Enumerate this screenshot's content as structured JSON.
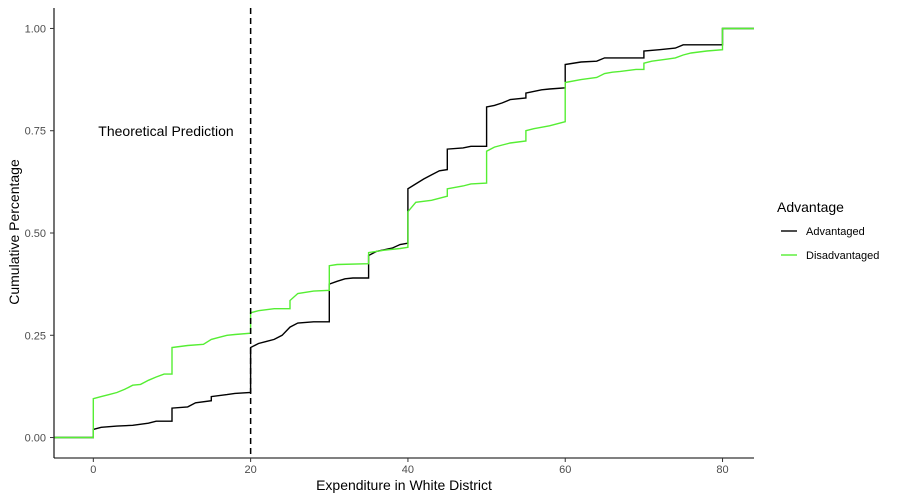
{
  "chart_data": {
    "type": "line",
    "step": true,
    "xlabel": "Expenditure in White District",
    "ylabel": "Cumulative Percentage",
    "xlim": [
      -5,
      84
    ],
    "ylim": [
      -0.05,
      1.05
    ],
    "x_ticks": [
      0,
      20,
      40,
      60,
      80
    ],
    "y_ticks": [
      0.0,
      0.25,
      0.5,
      0.75,
      1.0
    ],
    "x_tick_labels": [
      "0",
      "20",
      "40",
      "60",
      "80"
    ],
    "y_tick_labels": [
      "0.00",
      "0.25",
      "0.50",
      "0.75",
      "1.00"
    ],
    "grid": false,
    "annotations": [
      {
        "text": "Theoretical Prediction",
        "x": 20,
        "style": "dashed-vertical-line"
      }
    ],
    "legend": {
      "title": "Advantage",
      "placement": "right"
    },
    "series": [
      {
        "name": "Advantaged",
        "color": "#000000",
        "points": [
          [
            -5,
            0.0
          ],
          [
            0,
            0.0
          ],
          [
            0,
            0.02
          ],
          [
            1,
            0.025
          ],
          [
            3,
            0.028
          ],
          [
            5,
            0.03
          ],
          [
            7,
            0.035
          ],
          [
            8,
            0.04
          ],
          [
            10,
            0.04
          ],
          [
            10,
            0.072
          ],
          [
            12,
            0.075
          ],
          [
            13,
            0.085
          ],
          [
            15,
            0.09
          ],
          [
            15,
            0.1
          ],
          [
            17,
            0.105
          ],
          [
            18,
            0.108
          ],
          [
            20,
            0.11
          ],
          [
            20,
            0.22
          ],
          [
            21,
            0.23
          ],
          [
            22,
            0.235
          ],
          [
            23,
            0.24
          ],
          [
            24,
            0.25
          ],
          [
            25,
            0.27
          ],
          [
            26,
            0.28
          ],
          [
            28,
            0.283
          ],
          [
            30,
            0.283
          ],
          [
            30,
            0.375
          ],
          [
            31,
            0.382
          ],
          [
            32,
            0.388
          ],
          [
            33,
            0.39
          ],
          [
            35,
            0.39
          ],
          [
            35,
            0.445
          ],
          [
            36,
            0.455
          ],
          [
            38,
            0.463
          ],
          [
            39,
            0.472
          ],
          [
            40,
            0.475
          ],
          [
            40,
            0.608
          ],
          [
            41,
            0.62
          ],
          [
            42,
            0.632
          ],
          [
            43,
            0.642
          ],
          [
            44,
            0.652
          ],
          [
            45,
            0.655
          ],
          [
            45,
            0.705
          ],
          [
            47,
            0.708
          ],
          [
            48,
            0.712
          ],
          [
            50,
            0.712
          ],
          [
            50,
            0.808
          ],
          [
            51,
            0.812
          ],
          [
            52,
            0.818
          ],
          [
            53,
            0.826
          ],
          [
            55,
            0.83
          ],
          [
            55,
            0.842
          ],
          [
            57,
            0.85
          ],
          [
            58,
            0.852
          ],
          [
            60,
            0.855
          ],
          [
            60,
            0.912
          ],
          [
            62,
            0.918
          ],
          [
            64,
            0.92
          ],
          [
            65,
            0.928
          ],
          [
            70,
            0.928
          ],
          [
            70,
            0.945
          ],
          [
            72,
            0.948
          ],
          [
            74,
            0.952
          ],
          [
            75,
            0.96
          ],
          [
            80,
            0.96
          ],
          [
            80,
            1.0
          ],
          [
            84,
            1.0
          ]
        ]
      },
      {
        "name": "Disadvantaged",
        "color": "#55ee33",
        "points": [
          [
            -5,
            0.0
          ],
          [
            0,
            0.0
          ],
          [
            0,
            0.095
          ],
          [
            1,
            0.1
          ],
          [
            2,
            0.105
          ],
          [
            3,
            0.11
          ],
          [
            4,
            0.118
          ],
          [
            5,
            0.128
          ],
          [
            6,
            0.13
          ],
          [
            7,
            0.14
          ],
          [
            8,
            0.148
          ],
          [
            9,
            0.155
          ],
          [
            10,
            0.155
          ],
          [
            10,
            0.22
          ],
          [
            12,
            0.225
          ],
          [
            14,
            0.228
          ],
          [
            15,
            0.24
          ],
          [
            16,
            0.245
          ],
          [
            17,
            0.25
          ],
          [
            18,
            0.252
          ],
          [
            20,
            0.255
          ],
          [
            20,
            0.305
          ],
          [
            21,
            0.31
          ],
          [
            23,
            0.315
          ],
          [
            25,
            0.315
          ],
          [
            25,
            0.335
          ],
          [
            26,
            0.352
          ],
          [
            28,
            0.358
          ],
          [
            30,
            0.36
          ],
          [
            30,
            0.42
          ],
          [
            31,
            0.423
          ],
          [
            35,
            0.425
          ],
          [
            35,
            0.452
          ],
          [
            37,
            0.458
          ],
          [
            39,
            0.462
          ],
          [
            40,
            0.465
          ],
          [
            40,
            0.552
          ],
          [
            41,
            0.575
          ],
          [
            43,
            0.58
          ],
          [
            45,
            0.59
          ],
          [
            45,
            0.608
          ],
          [
            47,
            0.615
          ],
          [
            48,
            0.62
          ],
          [
            50,
            0.622
          ],
          [
            50,
            0.7
          ],
          [
            51,
            0.71
          ],
          [
            52,
            0.715
          ],
          [
            53,
            0.72
          ],
          [
            55,
            0.725
          ],
          [
            55,
            0.75
          ],
          [
            56,
            0.755
          ],
          [
            58,
            0.762
          ],
          [
            60,
            0.772
          ],
          [
            60,
            0.868
          ],
          [
            62,
            0.875
          ],
          [
            64,
            0.88
          ],
          [
            65,
            0.89
          ],
          [
            66,
            0.893
          ],
          [
            67,
            0.895
          ],
          [
            69,
            0.9
          ],
          [
            70,
            0.9
          ],
          [
            70,
            0.915
          ],
          [
            71,
            0.92
          ],
          [
            73,
            0.925
          ],
          [
            74,
            0.928
          ],
          [
            75,
            0.935
          ],
          [
            76,
            0.94
          ],
          [
            78,
            0.945
          ],
          [
            80,
            0.948
          ],
          [
            80,
            1.0
          ],
          [
            84,
            1.0
          ]
        ]
      }
    ]
  }
}
